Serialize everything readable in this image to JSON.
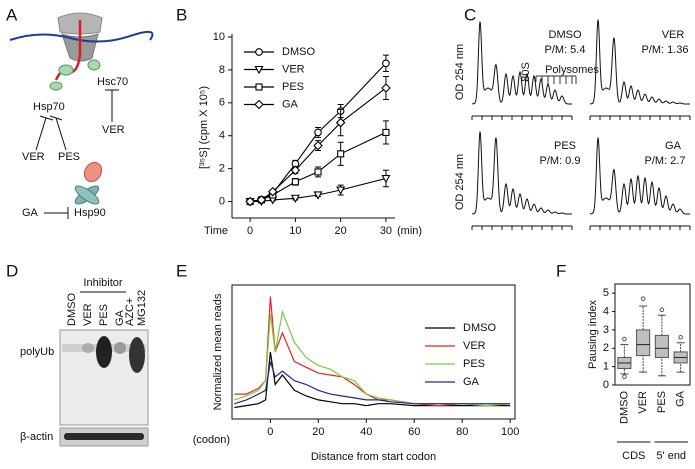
{
  "panel_labels": [
    "A",
    "B",
    "C",
    "D",
    "E",
    "F"
  ],
  "diagram": {
    "hsc70": "Hsc70",
    "hsp70": "Hsp70",
    "hsp90": "Hsp90",
    "inhibitors": [
      "VER",
      "VER",
      "PES",
      "GA"
    ]
  },
  "profiles": {
    "y_label": "OD 254 nm",
    "peak_80s": "80S",
    "polysomes": "Polysomes",
    "panels": [
      {
        "name": "DMSO",
        "ratio": "P/M: 5.4"
      },
      {
        "name": "VER",
        "ratio": "P/M: 1.36"
      },
      {
        "name": "PES",
        "ratio": "P/M: 0.9"
      },
      {
        "name": "GA",
        "ratio": "P/M: 2.7"
      }
    ]
  },
  "blot": {
    "inhibitor": "Inhibitor",
    "lanes": [
      "DMSO",
      "VER",
      "PES",
      "GA"
    ],
    "control_lane": [
      "AZC+",
      "MG132"
    ],
    "rows": [
      "polyUb",
      "β-actin"
    ]
  },
  "chart_data": [
    {
      "type": "line",
      "x_label": "Time",
      "x_unit": "(min)",
      "y_label": "[³⁵S] (cpm X 10⁵)",
      "x": [
        0,
        2.5,
        5,
        10,
        15,
        20,
        30
      ],
      "series": [
        {
          "name": "DMSO",
          "color": "#000000",
          "marker": "circle",
          "values": [
            0,
            0.1,
            0.5,
            2.3,
            4.2,
            5.5,
            8.4
          ],
          "errors": [
            0,
            0.1,
            0.1,
            0.2,
            0.3,
            0.4,
            0.5
          ]
        },
        {
          "name": "VER",
          "color": "#000000",
          "marker": "triangle-down",
          "values": [
            0,
            0,
            0.1,
            0.2,
            0.4,
            0.7,
            1.4
          ],
          "errors": [
            0,
            0.05,
            0.05,
            0.1,
            0.1,
            0.3,
            0.5
          ]
        },
        {
          "name": "PES",
          "color": "#000000",
          "marker": "square",
          "values": [
            0,
            0.1,
            0.4,
            1.2,
            1.8,
            2.9,
            4.2
          ],
          "errors": [
            0,
            0.1,
            0.1,
            0.2,
            0.3,
            0.7,
            0.7
          ]
        },
        {
          "name": "GA",
          "color": "#000000",
          "marker": "diamond",
          "values": [
            0,
            0.1,
            0.6,
            1.9,
            3.4,
            4.8,
            6.9
          ],
          "errors": [
            0,
            0.1,
            0.1,
            0.2,
            0.3,
            0.8,
            0.7
          ]
        }
      ],
      "xlim": [
        -4,
        32
      ],
      "ylim": [
        -1,
        10
      ],
      "xticks": [
        0,
        10,
        20,
        30
      ],
      "yticks": [
        0,
        2,
        4,
        6,
        8,
        10
      ],
      "legend": "upper left"
    },
    {
      "type": "line",
      "x_label": "Distance from start codon",
      "x_unit": "(codon)",
      "y_label": "Normalized mean reads",
      "x": [
        -15,
        -10,
        -5,
        -2,
        0,
        2,
        5,
        10,
        15,
        20,
        25,
        30,
        35,
        40,
        45,
        50,
        60,
        70,
        80,
        90,
        100
      ],
      "series": [
        {
          "name": "DMSO",
          "color": "#000000",
          "values": [
            0.6,
            0.7,
            0.8,
            1.0,
            3.5,
            1.8,
            2.3,
            1.5,
            1.2,
            1.0,
            0.9,
            0.8,
            0.8,
            0.7,
            0.8,
            0.8,
            0.7,
            0.7,
            0.7,
            0.7,
            0.7
          ]
        },
        {
          "name": "VER",
          "color": "#e8231f",
          "values": [
            1.3,
            1.3,
            1.6,
            2.0,
            6.4,
            3.5,
            4.5,
            3.0,
            2.7,
            2.4,
            2.3,
            2.2,
            1.8,
            1.3,
            1.0,
            1.0,
            0.8,
            0.7,
            0.8,
            0.7,
            0.8
          ]
        },
        {
          "name": "PES",
          "color": "#7ac943",
          "values": [
            1.0,
            1.2,
            1.5,
            2.0,
            5.5,
            3.5,
            5.6,
            4.0,
            3.2,
            2.8,
            2.6,
            2.2,
            2.0,
            1.3,
            1.1,
            1.0,
            0.8,
            0.8,
            0.8,
            0.7,
            0.8
          ]
        },
        {
          "name": "GA",
          "color": "#1f2a8a",
          "values": [
            0.8,
            1.0,
            1.3,
            1.5,
            3.0,
            2.2,
            2.5,
            2.0,
            1.8,
            1.5,
            1.3,
            1.2,
            1.1,
            1.0,
            1.0,
            0.9,
            0.8,
            0.8,
            0.8,
            0.8,
            0.8
          ]
        }
      ],
      "xlim": [
        -16,
        102
      ],
      "ylim": [
        0,
        7
      ],
      "xticks": [
        0,
        20,
        40,
        60,
        80,
        100
      ],
      "legend": "upper right"
    },
    {
      "type": "box",
      "y_label": "Pausing index",
      "categories": [
        "DMSO",
        "VER",
        "PES",
        "GA"
      ],
      "group_labels": [
        "CDS",
        "5' end"
      ],
      "color": "#bfbfbf",
      "boxes": [
        {
          "min": 0.6,
          "q1": 0.9,
          "median": 1.2,
          "q3": 1.5,
          "max": 2.2,
          "outliers": [
            2.5,
            0.45
          ]
        },
        {
          "min": 0.7,
          "q1": 1.6,
          "median": 2.2,
          "q3": 3.0,
          "max": 4.3,
          "outliers": [
            4.7
          ]
        },
        {
          "min": 0.5,
          "q1": 1.5,
          "median": 2.0,
          "q3": 2.7,
          "max": 3.8,
          "outliers": [
            4.1
          ]
        },
        {
          "min": 0.7,
          "q1": 1.2,
          "median": 1.5,
          "q3": 1.8,
          "max": 2.3,
          "outliers": [
            2.6
          ]
        }
      ],
      "ylim": [
        0,
        5.5
      ],
      "yticks": [
        0,
        1,
        2,
        3,
        4,
        5
      ]
    }
  ]
}
